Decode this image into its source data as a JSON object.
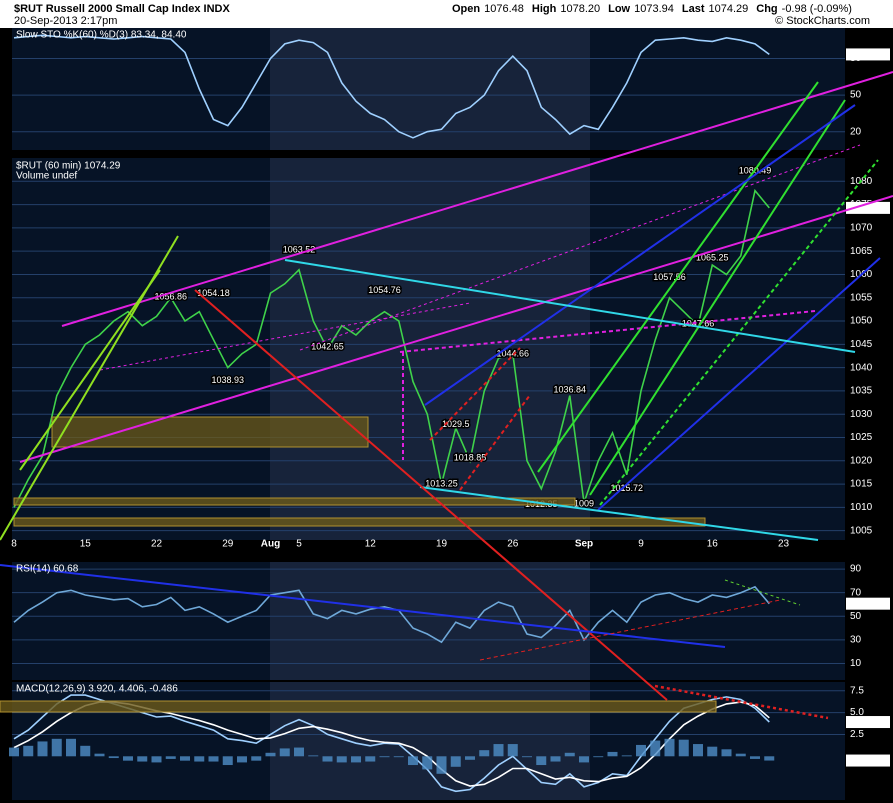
{
  "header": {
    "title": "$RUT Russell 2000 Small Cap Index INDX",
    "date": "20-Sep-2013 2:17pm",
    "quote": [
      {
        "label": "Open",
        "value": "1076.48"
      },
      {
        "label": "High",
        "value": "1078.20"
      },
      {
        "label": "Low",
        "value": "1073.94"
      },
      {
        "label": "Last",
        "value": "1074.29"
      },
      {
        "label": "Chg",
        "value": "-0.98 (-0.09%)"
      }
    ],
    "credit": "© StockCharts.com"
  },
  "chart_data": [
    {
      "type": "line",
      "title": "Slow STO %K(60) %D(3) 83.34, 84.40",
      "color": "#9fd0ff",
      "series": [
        {
          "values": [
            97,
            98,
            99,
            98,
            97,
            98,
            97,
            96,
            97,
            98,
            97,
            96,
            85,
            55,
            30,
            25,
            40,
            60,
            80,
            92,
            95,
            93,
            85,
            60,
            45,
            35,
            30,
            20,
            15,
            20,
            22,
            35,
            40,
            50,
            70,
            82,
            70,
            40,
            30,
            18,
            25,
            22,
            40,
            60,
            85,
            95,
            96,
            97,
            95,
            94,
            97,
            95,
            92,
            83.34,
            null,
            null,
            null,
            null,
            null
          ]
        }
      ],
      "ylim": [
        5,
        105
      ],
      "yticks": [
        20,
        50,
        80
      ],
      "grid": true
    },
    {
      "type": "line",
      "title": "$RUT (60 min) 1074.29",
      "subtitle": "Volume undef",
      "color": "#3fd24a",
      "categories": [
        "8",
        null,
        null,
        null,
        null,
        "15",
        null,
        null,
        null,
        null,
        "22",
        null,
        null,
        null,
        null,
        "29",
        null,
        null,
        "Aug",
        null,
        "5",
        null,
        null,
        null,
        null,
        "12",
        null,
        null,
        null,
        null,
        "19",
        null,
        null,
        null,
        null,
        "26",
        null,
        null,
        null,
        null,
        "Sep",
        null,
        null,
        null,
        "9",
        null,
        null,
        null,
        null,
        "16",
        null,
        null,
        null,
        null,
        "23",
        null,
        null,
        null,
        null
      ],
      "series": [
        {
          "values": [
            1010,
            1016,
            1021,
            1034,
            1040,
            1045,
            1047,
            1050,
            1052,
            1049,
            1051,
            1055,
            1050,
            1052,
            1046,
            1040,
            1043,
            1045,
            1056,
            1058,
            1061,
            1050,
            1044,
            1049,
            1047,
            1050,
            1052,
            1050,
            1037,
            1030,
            1015,
            1027,
            1020,
            1035,
            1042,
            1043,
            1020,
            1014,
            1022,
            1034,
            1011,
            1020,
            1026,
            1017,
            1035,
            1046,
            1055,
            1052,
            1049,
            1062,
            1060,
            1064,
            1078,
            1074.29,
            null,
            null,
            null,
            null,
            null
          ]
        }
      ],
      "pivots": [
        null,
        null,
        null,
        null,
        null,
        null,
        null,
        null,
        null,
        null,
        null,
        1056.86,
        null,
        null,
        1054.18,
        1038.93,
        null,
        null,
        null,
        null,
        1063.52,
        null,
        1042.65,
        null,
        null,
        null,
        1054.76,
        null,
        null,
        null,
        1013.25,
        1029.5,
        1018.85,
        null,
        null,
        1044.66,
        null,
        1012.35,
        null,
        1036.84,
        1009.0,
        null,
        null,
        1015.72,
        null,
        null,
        1057.56,
        null,
        1047.66,
        1065.25,
        null,
        null,
        1080.49,
        null,
        null,
        null,
        null,
        null,
        null
      ],
      "ylim": [
        1003,
        1085
      ],
      "yticks": [
        1005,
        1010,
        1015,
        1020,
        1025,
        1030,
        1035,
        1040,
        1045,
        1050,
        1055,
        1060,
        1065,
        1070,
        1075,
        1080
      ],
      "grid": true
    },
    {
      "type": "line",
      "title": "RSI(14) 60.68",
      "color": "#6fa8d8",
      "series": [
        {
          "values": [
            45,
            55,
            62,
            70,
            72,
            68,
            66,
            64,
            65,
            58,
            60,
            66,
            55,
            58,
            52,
            45,
            50,
            55,
            68,
            70,
            72,
            52,
            48,
            55,
            52,
            56,
            58,
            55,
            40,
            35,
            28,
            45,
            40,
            55,
            62,
            58,
            35,
            32,
            42,
            55,
            30,
            45,
            55,
            45,
            62,
            68,
            70,
            65,
            62,
            68,
            66,
            70,
            75,
            60.68,
            null,
            null,
            null,
            null,
            null
          ]
        }
      ],
      "ylim": [
        -4,
        96
      ],
      "yticks": [
        10,
        30,
        50,
        70,
        90
      ],
      "grid": true
    },
    {
      "type": "line",
      "title": "MACD(12,26,9) 3.920, 4.406, -0.486",
      "series": [
        {
          "color": "#9fd0ff",
          "values": [
            2,
            3,
            4.5,
            6,
            7,
            7,
            6.5,
            6,
            5.5,
            5,
            4.5,
            4.6,
            4,
            3.5,
            3,
            2,
            1.8,
            1.5,
            2.5,
            3.5,
            4.2,
            3.5,
            2.5,
            2,
            1.5,
            1.2,
            1.5,
            1.4,
            0,
            -1.5,
            -3.5,
            -4,
            -3.8,
            -2.5,
            -1,
            0,
            -1.5,
            -3,
            -3.2,
            -2,
            -3.5,
            -3,
            -2,
            -2.2,
            0,
            2,
            4,
            5.5,
            6,
            6.5,
            6.8,
            6.5,
            5.5,
            3.92,
            null,
            null,
            null,
            null,
            null
          ],
          "value_labels": [
            null,
            null,
            null,
            null,
            null,
            null,
            null,
            null,
            null,
            null,
            null,
            null,
            null,
            null,
            null,
            null,
            null,
            null,
            null,
            null,
            null,
            null,
            null,
            null,
            null,
            null,
            null,
            null,
            null,
            null,
            null,
            null,
            null,
            null,
            null,
            null,
            null,
            null,
            null,
            null,
            null,
            null,
            null,
            null,
            null,
            null,
            null,
            null,
            null,
            null,
            null,
            null,
            null,
            "3.920",
            null,
            null,
            null,
            null,
            null
          ]
        },
        {
          "color": "#ffffff",
          "values": [
            1,
            1.8,
            2.8,
            4,
            5,
            5.8,
            6.2,
            6.2,
            6,
            5.6,
            5.2,
            4.9,
            4.5,
            4.1,
            3.6,
            3,
            2.5,
            2,
            2.1,
            2.6,
            3.2,
            3.4,
            3.1,
            2.7,
            2.2,
            1.8,
            1.6,
            1.5,
            1,
            0,
            -1.5,
            -2.8,
            -3.4,
            -3.2,
            -2.4,
            -1.4,
            -1.4,
            -2,
            -2.6,
            -2.4,
            -2.8,
            -2.9,
            -2.5,
            -2.3,
            -1.3,
            0.2,
            2,
            3.6,
            4.6,
            5.4,
            6,
            6.2,
            5.8,
            4.406,
            null,
            null,
            null,
            null,
            null
          ]
        },
        {
          "type": "bar",
          "color": "#4f8fc8",
          "values": [
            1,
            1.2,
            1.7,
            2,
            2,
            1.2,
            0.3,
            -0.2,
            -0.5,
            -0.6,
            -0.7,
            -0.3,
            -0.5,
            -0.6,
            -0.6,
            -1,
            -0.7,
            -0.5,
            0.4,
            0.9,
            1,
            0.1,
            -0.6,
            -0.7,
            -0.7,
            -0.6,
            -0.1,
            -0.1,
            -1,
            -1.5,
            -2,
            -1.2,
            -0.4,
            0.7,
            1.4,
            1.4,
            -0.1,
            -1,
            -0.6,
            0.4,
            -0.7,
            -0.1,
            0.5,
            0.1,
            1.3,
            1.8,
            2,
            1.9,
            1.4,
            1.1,
            0.8,
            0.3,
            -0.3,
            -0.486,
            null,
            null,
            null,
            null,
            null
          ]
        }
      ],
      "ylim": [
        -5,
        8.5
      ],
      "yticks": [
        2.5,
        {
          "value": 5,
          "label": "5.0"
        },
        7.5
      ],
      "grid": true
    }
  ]
}
